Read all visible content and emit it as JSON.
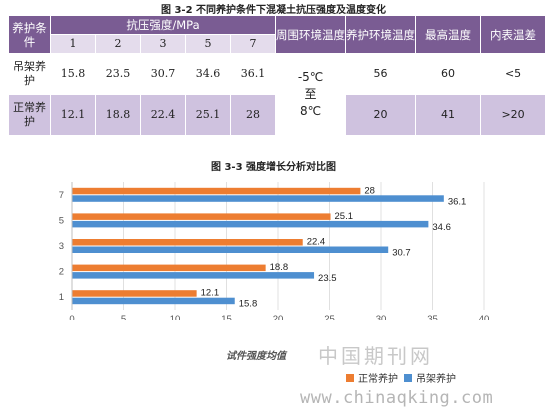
{
  "table": {
    "caption": "图 3-2 不同养护条件下混凝土抗压强度及温度变化",
    "header": {
      "condition": "养护条件",
      "strength": "抗压强度/MPa",
      "ambient": "周围环境温度",
      "curing_env": "养护环境温度",
      "max_temp": "最高温度",
      "surface_diff": "内表温差"
    },
    "ages": [
      "1",
      "2",
      "3",
      "5",
      "7"
    ],
    "rows": [
      {
        "name": "吊架养护",
        "values": [
          "15.8",
          "23.5",
          "30.7",
          "34.6",
          "36.1"
        ],
        "ambient": "-5℃\n至\n8℃",
        "curing_env": "56",
        "max_temp": "60",
        "diff": "<5"
      },
      {
        "name": "正常养护",
        "values": [
          "12.1",
          "18.8",
          "22.4",
          "25.1",
          "28"
        ],
        "curing_env": "20",
        "max_temp": "41",
        "diff": ">20"
      }
    ]
  },
  "chart_caption": "图 3-3 强度增长分析对比图",
  "chart_data": {
    "type": "bar",
    "orientation": "horizontal",
    "categories": [
      "1",
      "2",
      "3",
      "5",
      "7"
    ],
    "series": [
      {
        "name": "正常养护",
        "color": "#ed7d31",
        "values": [
          12.1,
          18.8,
          22.4,
          25.1,
          28
        ]
      },
      {
        "name": "吊架养护",
        "color": "#4e8fd0",
        "values": [
          15.8,
          23.5,
          30.7,
          34.6,
          36.1
        ]
      }
    ],
    "xlim": [
      0,
      40
    ],
    "xticks": [
      0,
      5,
      10,
      15,
      20,
      25,
      30,
      35,
      40
    ],
    "xlabel": "试件强度均值",
    "legend_position": "bottom",
    "grid": true
  },
  "watermark": {
    "logo_text": "中国期刊网",
    "url": "www.chinaqking.com"
  }
}
